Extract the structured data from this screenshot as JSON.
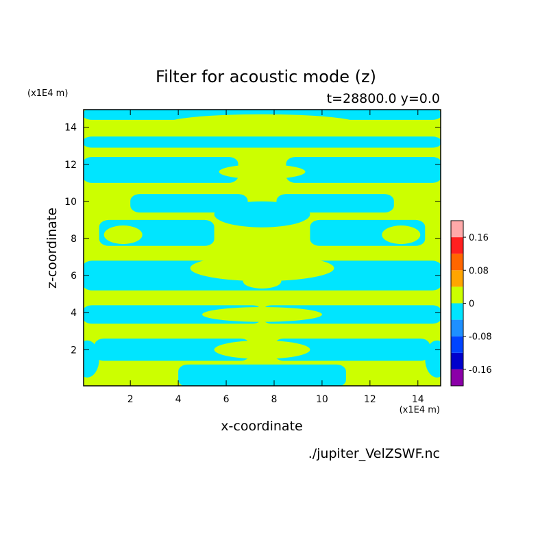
{
  "chart_data": {
    "type": "heatmap",
    "title": "Filter for acoustic mode (z)",
    "subtitle": "t=28800.0 y=0.0",
    "xlabel": "x-coordinate",
    "ylabel": "z-coordinate",
    "x_unit": "(x1E4 m)",
    "y_unit": "(x1E4 m)",
    "xlim": [
      0.05,
      14.95
    ],
    "ylim": [
      0.05,
      14.95
    ],
    "x_ticks": [
      2,
      4,
      6,
      8,
      10,
      12,
      14
    ],
    "y_ticks": [
      2,
      4,
      6,
      8,
      10,
      12,
      14
    ],
    "source": "./jupiter_VelZSWF.nc",
    "colorbar": {
      "levels": [
        -0.2,
        -0.16,
        -0.12,
        -0.08,
        -0.04,
        0,
        0.04,
        0.08,
        0.12,
        0.16,
        0.2
      ],
      "colors": [
        "#8b00a8",
        "#0000cc",
        "#0044ff",
        "#1e90ff",
        "#00e5ff",
        "#ccff00",
        "#ffa500",
        "#ff6600",
        "#ff2020",
        "#ffaaaa"
      ],
      "tick_labels": [
        "-0.16",
        "-0.08",
        "0",
        "0.08",
        "0.16"
      ],
      "tick_values": [
        -0.16,
        -0.08,
        0,
        0.08,
        0.16
      ]
    },
    "fill_colors": {
      "positive": "#ccff00",
      "negative": "#00e5ff"
    },
    "sign_field_description_rows": [
      {
        "z": 14.5,
        "sign": "negative"
      },
      {
        "z": 13.7,
        "sign": "positive"
      },
      {
        "z": 13.2,
        "sign": "negative"
      },
      {
        "z": 12.5,
        "sign": "positive"
      },
      {
        "z": 11.5,
        "sign": "negative"
      },
      {
        "z": 10.8,
        "sign": "positive"
      },
      {
        "z": 9.4,
        "sign": "negative"
      },
      {
        "z": 8.5,
        "sign": "positive"
      },
      {
        "z": 7.5,
        "sign": "negative"
      },
      {
        "z": 6.5,
        "sign": "positive"
      },
      {
        "z": 5.5,
        "sign": "negative"
      },
      {
        "z": 4.6,
        "sign": "positive"
      },
      {
        "z": 3.6,
        "sign": "negative"
      },
      {
        "z": 2.8,
        "sign": "positive"
      },
      {
        "z": 1.8,
        "sign": "negative"
      },
      {
        "z": 0.8,
        "sign": "positive"
      }
    ]
  }
}
